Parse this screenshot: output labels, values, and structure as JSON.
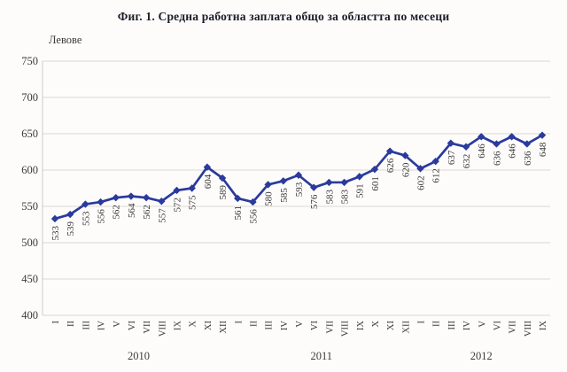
{
  "chart_data": {
    "type": "line",
    "title": "Фиг. 1. Средна работна заплата общо за областта по месеци",
    "ylabel": "Левове",
    "xlabel": "",
    "ylim": [
      400,
      750
    ],
    "yticks": [
      400,
      450,
      500,
      550,
      600,
      650,
      700,
      750
    ],
    "grid": true,
    "legend": false,
    "data_labels_rotated": true,
    "categories": [
      "I",
      "II",
      "III",
      "IV",
      "V",
      "VI",
      "VII",
      "VIII",
      "IX",
      "X",
      "XI",
      "XII",
      "I",
      "II",
      "III",
      "IV",
      "V",
      "VI",
      "VII",
      "VIII",
      "IX",
      "X",
      "XI",
      "XII",
      "I",
      "II",
      "III",
      "IV",
      "V",
      "VI",
      "VII",
      "VIII",
      "IX"
    ],
    "year_groups": [
      {
        "label": "2010",
        "from": 0,
        "to": 11
      },
      {
        "label": "2011",
        "from": 12,
        "to": 23
      },
      {
        "label": "2012",
        "from": 24,
        "to": 32
      }
    ],
    "series": [
      {
        "name": "Средна работна заплата",
        "marker": "diamond",
        "values": [
          533,
          539,
          553,
          556,
          562,
          564,
          562,
          557,
          572,
          575,
          604,
          589,
          561,
          556,
          580,
          585,
          593,
          576,
          583,
          583,
          591,
          601,
          626,
          620,
          602,
          612,
          637,
          632,
          646,
          636,
          646,
          636,
          648
        ]
      }
    ],
    "colors": {
      "line": "#2a3a9d",
      "grid": "#d9d7d2",
      "axis": "#cfcdc8",
      "tick_text": "#3b3b3b",
      "data_label_text": "#3a3a3a",
      "title_text": "#1c1c2a",
      "background": "#fdfcfa"
    }
  }
}
